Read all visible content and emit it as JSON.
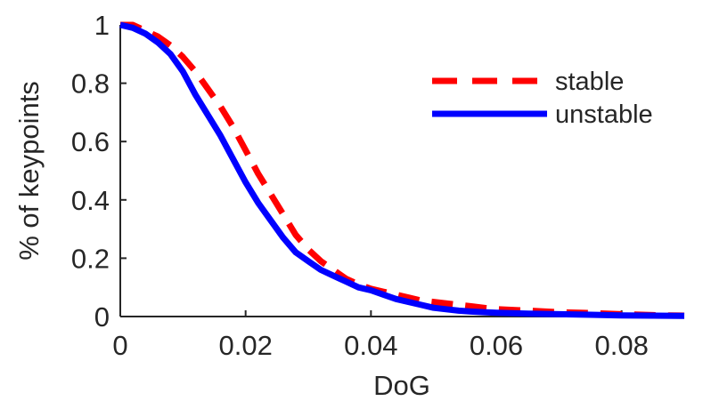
{
  "chart_data": {
    "type": "line",
    "title": "",
    "xlabel": "DoG",
    "ylabel": "% of keypoints",
    "xlim": [
      0,
      0.09
    ],
    "ylim": [
      0,
      1
    ],
    "x_ticks": [
      0,
      0.02,
      0.04,
      0.06,
      0.08
    ],
    "x_tick_labels": [
      "0",
      "0.02",
      "0.04",
      "0.06",
      "0.08"
    ],
    "y_ticks": [
      0,
      0.2,
      0.4,
      0.6,
      0.8,
      1
    ],
    "y_tick_labels": [
      "0",
      "0.2",
      "0.4",
      "0.6",
      "0.8",
      "1"
    ],
    "grid": false,
    "legend_position": "top-right",
    "series": [
      {
        "name": "stable",
        "color": "#ff0000",
        "line_style": "dashed",
        "x": [
          0,
          0.002,
          0.004,
          0.006,
          0.008,
          0.01,
          0.012,
          0.014,
          0.016,
          0.018,
          0.02,
          0.022,
          0.024,
          0.026,
          0.028,
          0.03,
          0.032,
          0.034,
          0.036,
          0.038,
          0.04,
          0.042,
          0.044,
          0.046,
          0.048,
          0.05,
          0.052,
          0.054,
          0.056,
          0.058,
          0.06,
          0.065,
          0.07,
          0.075,
          0.08,
          0.085,
          0.09
        ],
        "y": [
          1.0,
          1.0,
          0.98,
          0.96,
          0.93,
          0.89,
          0.84,
          0.78,
          0.72,
          0.65,
          0.57,
          0.49,
          0.42,
          0.35,
          0.28,
          0.23,
          0.19,
          0.16,
          0.13,
          0.11,
          0.095,
          0.085,
          0.075,
          0.065,
          0.055,
          0.05,
          0.045,
          0.04,
          0.035,
          0.03,
          0.025,
          0.02,
          0.015,
          0.012,
          0.008,
          0.005,
          0.003
        ]
      },
      {
        "name": "unstable",
        "color": "#0000ff",
        "line_style": "solid",
        "x": [
          0,
          0.002,
          0.004,
          0.006,
          0.008,
          0.01,
          0.012,
          0.014,
          0.016,
          0.018,
          0.02,
          0.022,
          0.024,
          0.026,
          0.028,
          0.03,
          0.032,
          0.034,
          0.036,
          0.038,
          0.04,
          0.042,
          0.044,
          0.046,
          0.048,
          0.05,
          0.052,
          0.054,
          0.056,
          0.058,
          0.06,
          0.065,
          0.07,
          0.075,
          0.08,
          0.085,
          0.09
        ],
        "y": [
          1.0,
          0.99,
          0.97,
          0.94,
          0.9,
          0.84,
          0.76,
          0.69,
          0.62,
          0.54,
          0.46,
          0.39,
          0.33,
          0.27,
          0.22,
          0.19,
          0.16,
          0.14,
          0.12,
          0.1,
          0.09,
          0.075,
          0.06,
          0.05,
          0.04,
          0.03,
          0.025,
          0.02,
          0.017,
          0.015,
          0.013,
          0.01,
          0.008,
          0.006,
          0.004,
          0.003,
          0.002
        ]
      }
    ]
  }
}
